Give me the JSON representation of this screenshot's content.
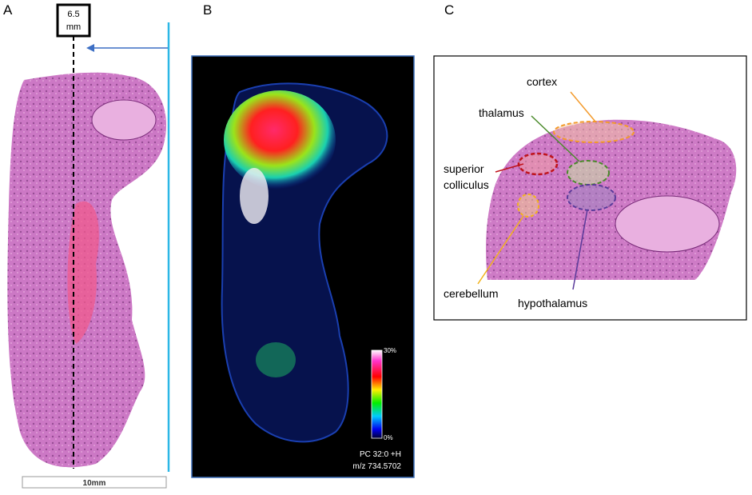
{
  "panel_a": {
    "label": "A",
    "marker": {
      "line1": "6.5",
      "line2": "mm"
    },
    "scale_bar": "10mm"
  },
  "panel_b": {
    "label": "B",
    "colorbar": {
      "max": "30%",
      "min": "0%"
    },
    "annotation": {
      "line1": "PC 32:0 +H",
      "line2": "m/z 734.5702"
    }
  },
  "panel_c": {
    "label": "C",
    "regions": [
      {
        "name": "cortex"
      },
      {
        "name": "thalamus"
      },
      {
        "name_line1": "superior",
        "name_line2": "colliculus"
      },
      {
        "name": "cerebellum"
      },
      {
        "name": "hypothalamus"
      }
    ]
  }
}
